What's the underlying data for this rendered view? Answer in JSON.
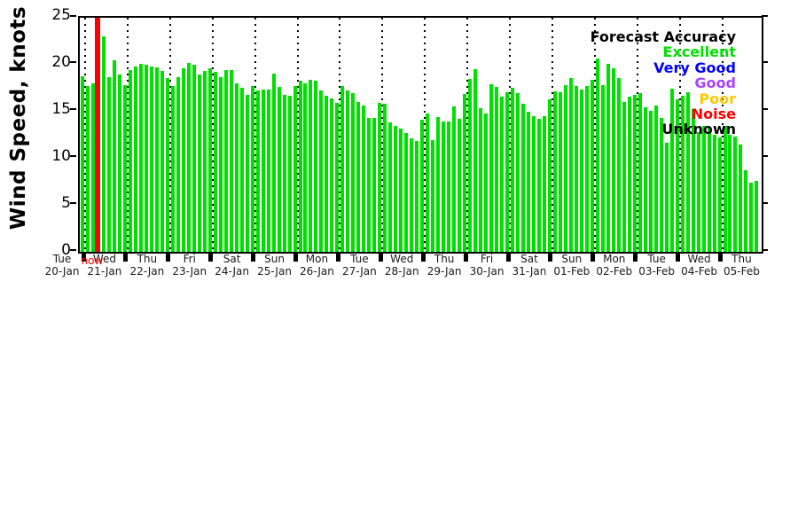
{
  "chart_data": {
    "type": "bar",
    "title": "",
    "ylabel": "Wind Speed, knots",
    "xlabel": "",
    "ylim": [
      0,
      25
    ],
    "yticks": [
      0,
      5,
      10,
      15,
      20,
      25
    ],
    "grid": "vertical-dotted-day-boundaries",
    "bar_color": "#00e000",
    "bar_interval_hours": 3,
    "days": [
      {
        "name": "Tue",
        "date": "20-Jan",
        "values": [
          18.7
        ]
      },
      {
        "name": "Wed",
        "date": "21-Jan",
        "values": [
          17.7,
          18.0,
          18.0,
          23.0,
          18.6,
          20.4,
          18.9,
          17.8
        ]
      },
      {
        "name": "Thu",
        "date": "22-Jan",
        "values": [
          19.4,
          19.8,
          20.0,
          19.9,
          19.8,
          19.7,
          19.3,
          18.5
        ]
      },
      {
        "name": "Fri",
        "date": "23-Jan",
        "values": [
          17.7,
          18.6,
          19.6,
          20.1,
          19.9,
          18.9,
          19.3,
          19.6
        ]
      },
      {
        "name": "Sat",
        "date": "24-Jan",
        "values": [
          19.2,
          18.6,
          19.4,
          19.4,
          18.0,
          17.5,
          16.7,
          17.7
        ]
      },
      {
        "name": "Sun",
        "date": "25-Jan",
        "values": [
          17.2,
          17.3,
          17.3,
          19.0,
          17.6,
          16.7,
          16.6,
          17.7
        ]
      },
      {
        "name": "Mon",
        "date": "26-Jan",
        "values": [
          18.2,
          18.0,
          18.3,
          18.2,
          17.2,
          16.6,
          16.4,
          15.9
        ]
      },
      {
        "name": "Tue",
        "date": "27-Jan",
        "values": [
          17.7,
          17.2,
          16.9,
          16.0,
          15.6,
          14.3,
          14.3,
          15.9
        ]
      },
      {
        "name": "Wed",
        "date": "28-Jan",
        "values": [
          15.8,
          13.8,
          13.4,
          13.1,
          12.7,
          12.1,
          11.8,
          14.1
        ]
      },
      {
        "name": "Thu",
        "date": "29-Jan",
        "values": [
          14.7,
          11.9,
          14.4,
          13.9,
          13.9,
          15.5,
          14.2,
          16.8
        ]
      },
      {
        "name": "Fri",
        "date": "30-Jan",
        "values": [
          18.4,
          19.5,
          15.3,
          14.7,
          17.9,
          17.6,
          16.5,
          17.0
        ]
      },
      {
        "name": "Sat",
        "date": "31-Jan",
        "values": [
          17.5,
          16.9,
          15.8,
          14.9,
          14.5,
          14.2,
          14.5,
          16.3
        ]
      },
      {
        "name": "Sun",
        "date": "01-Feb",
        "values": [
          17.1,
          17.0,
          17.8,
          18.5,
          17.7,
          17.3,
          17.7,
          18.3
        ]
      },
      {
        "name": "Mon",
        "date": "02-Feb",
        "values": [
          20.6,
          17.8,
          20.0,
          19.6,
          18.5,
          16.0,
          16.5,
          16.7
        ]
      },
      {
        "name": "Tue",
        "date": "03-Feb",
        "values": [
          16.9,
          15.4,
          15.0,
          15.6,
          14.3,
          11.6,
          17.4,
          16.3
        ]
      },
      {
        "name": "Wed",
        "date": "04-Feb",
        "values": [
          16.6,
          17.0,
          15.2,
          12.8,
          13.4,
          13.2,
          12.5,
          12.2
        ]
      },
      {
        "name": "Thu",
        "date": "05-Feb",
        "values": [
          13.4,
          12.5,
          12.3,
          11.4,
          8.7,
          7.4,
          7.6
        ]
      }
    ],
    "now_marker": {
      "label": "now",
      "day_index": 1,
      "hour": 7,
      "color": "#ff0000"
    },
    "legend": {
      "title": "Forecast Accuracy",
      "position": "top-right",
      "items": [
        {
          "label": "Excellent",
          "color": "#00e000"
        },
        {
          "label": "Very Good",
          "color": "#0000ff"
        },
        {
          "label": "Good",
          "color": "#aa44ff"
        },
        {
          "label": "Poor",
          "color": "#ffc800"
        },
        {
          "label": "Noise",
          "color": "#ff0000"
        },
        {
          "label": "Unknown",
          "color": "#000000"
        }
      ]
    }
  }
}
